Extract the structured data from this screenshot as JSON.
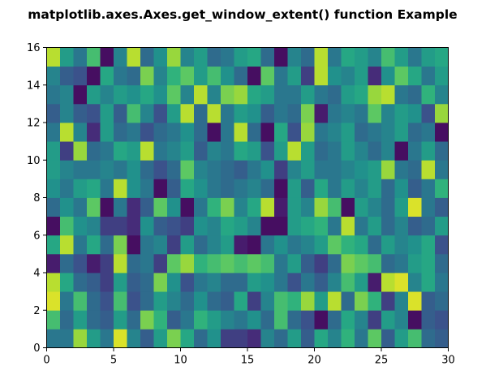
{
  "figure": {
    "title": "matplotlib.axes.Axes.get_window_extent() function Example"
  },
  "chart_data": {
    "type": "heatmap",
    "title": "matplotlib.axes.Axes.get_window_extent() function Example",
    "xlabel": "",
    "ylabel": "",
    "xlim": [
      0,
      30
    ],
    "ylim": [
      0,
      16
    ],
    "xticks": [
      0,
      5,
      10,
      15,
      20,
      25,
      30
    ],
    "yticks": [
      0,
      2,
      4,
      6,
      8,
      10,
      12,
      14,
      16
    ],
    "xtick_labels": [
      "0",
      "5",
      "10",
      "15",
      "20",
      "25",
      "30"
    ],
    "ytick_labels": [
      "0",
      "2",
      "4",
      "6",
      "8",
      "10",
      "12",
      "14",
      "16"
    ],
    "grid": false,
    "colormap": "viridis",
    "value_range": [
      0,
      1
    ],
    "rows": 16,
    "cols": 30,
    "values": [
      [
        0.4,
        0.4,
        0.85,
        0.55,
        0.4,
        0.95,
        0.45,
        0.3,
        0.55,
        0.8,
        0.6,
        0.35,
        0.5,
        0.2,
        0.2,
        0.15,
        0.45,
        0.35,
        0.55,
        0.3,
        0.6,
        0.45,
        0.65,
        0.4,
        0.75,
        0.3,
        0.55,
        0.7,
        0.35,
        0.3
      ],
      [
        0.7,
        0.35,
        0.55,
        0.35,
        0.3,
        0.55,
        0.35,
        0.8,
        0.65,
        0.3,
        0.4,
        0.65,
        0.55,
        0.45,
        0.4,
        0.5,
        0.35,
        0.7,
        0.35,
        0.25,
        0.05,
        0.35,
        0.6,
        0.45,
        0.2,
        0.55,
        0.45,
        0.05,
        0.3,
        0.25
      ],
      [
        0.95,
        0.4,
        0.7,
        0.35,
        0.25,
        0.7,
        0.25,
        0.35,
        0.55,
        0.45,
        0.35,
        0.5,
        0.35,
        0.3,
        0.6,
        0.2,
        0.45,
        0.7,
        0.65,
        0.85,
        0.55,
        0.9,
        0.35,
        0.8,
        0.65,
        0.2,
        0.45,
        0.95,
        0.3,
        0.35
      ],
      [
        0.9,
        0.6,
        0.35,
        0.3,
        0.2,
        0.55,
        0.3,
        0.35,
        0.8,
        0.5,
        0.25,
        0.4,
        0.45,
        0.35,
        0.35,
        0.55,
        0.5,
        0.4,
        0.25,
        0.4,
        0.3,
        0.45,
        0.7,
        0.55,
        0.1,
        0.9,
        0.95,
        0.45,
        0.6,
        0.4
      ],
      [
        0.1,
        0.35,
        0.25,
        0.1,
        0.2,
        0.9,
        0.35,
        0.4,
        0.2,
        0.75,
        0.85,
        0.65,
        0.7,
        0.75,
        0.7,
        0.75,
        0.7,
        0.4,
        0.55,
        0.3,
        0.2,
        0.35,
        0.8,
        0.75,
        0.7,
        0.35,
        0.4,
        0.55,
        0.6,
        0.35
      ],
      [
        0.6,
        0.9,
        0.4,
        0.6,
        0.35,
        0.8,
        0.05,
        0.4,
        0.45,
        0.2,
        0.55,
        0.35,
        0.45,
        0.55,
        0.1,
        0.05,
        0.4,
        0.5,
        0.4,
        0.45,
        0.55,
        0.75,
        0.65,
        0.6,
        0.35,
        0.55,
        0.45,
        0.5,
        0.6,
        0.25
      ],
      [
        0.05,
        0.7,
        0.5,
        0.45,
        0.2,
        0.2,
        0.15,
        0.5,
        0.3,
        0.25,
        0.2,
        0.5,
        0.45,
        0.6,
        0.55,
        0.45,
        0.05,
        0.05,
        0.55,
        0.6,
        0.65,
        0.4,
        0.9,
        0.4,
        0.55,
        0.35,
        0.45,
        0.3,
        0.35,
        0.55
      ],
      [
        0.35,
        0.5,
        0.4,
        0.75,
        0.05,
        0.4,
        0.15,
        0.3,
        0.75,
        0.5,
        0.05,
        0.4,
        0.65,
        0.8,
        0.45,
        0.6,
        0.9,
        0.1,
        0.55,
        0.45,
        0.85,
        0.7,
        0.05,
        0.55,
        0.45,
        0.35,
        0.55,
        0.95,
        0.4,
        0.3
      ],
      [
        0.5,
        0.4,
        0.55,
        0.6,
        0.4,
        0.9,
        0.5,
        0.4,
        0.05,
        0.3,
        0.6,
        0.5,
        0.4,
        0.35,
        0.4,
        0.45,
        0.35,
        0.05,
        0.55,
        0.3,
        0.6,
        0.4,
        0.55,
        0.45,
        0.55,
        0.35,
        0.5,
        0.3,
        0.4,
        0.65
      ],
      [
        0.55,
        0.45,
        0.4,
        0.4,
        0.45,
        0.4,
        0.5,
        0.35,
        0.25,
        0.35,
        0.75,
        0.45,
        0.4,
        0.35,
        0.3,
        0.4,
        0.5,
        0.2,
        0.45,
        0.55,
        0.4,
        0.4,
        0.45,
        0.5,
        0.55,
        0.85,
        0.4,
        0.35,
        0.9,
        0.4
      ],
      [
        0.55,
        0.2,
        0.85,
        0.35,
        0.4,
        0.6,
        0.55,
        0.9,
        0.4,
        0.45,
        0.55,
        0.3,
        0.45,
        0.4,
        0.6,
        0.55,
        0.25,
        0.55,
        0.9,
        0.55,
        0.35,
        0.4,
        0.55,
        0.45,
        0.35,
        0.45,
        0.05,
        0.4,
        0.55,
        0.35
      ],
      [
        0.4,
        0.9,
        0.45,
        0.15,
        0.55,
        0.35,
        0.4,
        0.25,
        0.35,
        0.4,
        0.5,
        0.35,
        0.05,
        0.4,
        0.9,
        0.35,
        0.05,
        0.6,
        0.25,
        0.85,
        0.4,
        0.45,
        0.55,
        0.35,
        0.4,
        0.45,
        0.55,
        0.35,
        0.4,
        0.05
      ],
      [
        0.3,
        0.45,
        0.3,
        0.25,
        0.55,
        0.3,
        0.7,
        0.45,
        0.25,
        0.55,
        0.9,
        0.35,
        0.9,
        0.4,
        0.55,
        0.5,
        0.3,
        0.4,
        0.35,
        0.8,
        0.1,
        0.4,
        0.45,
        0.4,
        0.75,
        0.45,
        0.55,
        0.5,
        0.25,
        0.85
      ],
      [
        0.4,
        0.45,
        0.05,
        0.55,
        0.45,
        0.55,
        0.5,
        0.6,
        0.5,
        0.75,
        0.45,
        0.9,
        0.45,
        0.8,
        0.85,
        0.6,
        0.55,
        0.4,
        0.4,
        0.55,
        0.4,
        0.35,
        0.55,
        0.6,
        0.85,
        0.9,
        0.4,
        0.35,
        0.65,
        0.45
      ],
      [
        0.45,
        0.3,
        0.25,
        0.05,
        0.6,
        0.4,
        0.35,
        0.8,
        0.45,
        0.65,
        0.75,
        0.55,
        0.7,
        0.5,
        0.35,
        0.05,
        0.75,
        0.4,
        0.55,
        0.2,
        0.9,
        0.5,
        0.45,
        0.55,
        0.15,
        0.5,
        0.75,
        0.6,
        0.4,
        0.55
      ],
      [
        0.9,
        0.55,
        0.4,
        0.7,
        0.05,
        0.45,
        0.9,
        0.35,
        0.5,
        0.85,
        0.45,
        0.55,
        0.35,
        0.4,
        0.55,
        0.6,
        0.35,
        0.05,
        0.45,
        0.35,
        0.9,
        0.4,
        0.6,
        0.55,
        0.45,
        0.7,
        0.55,
        0.4,
        0.55,
        0.6
      ]
    ]
  }
}
